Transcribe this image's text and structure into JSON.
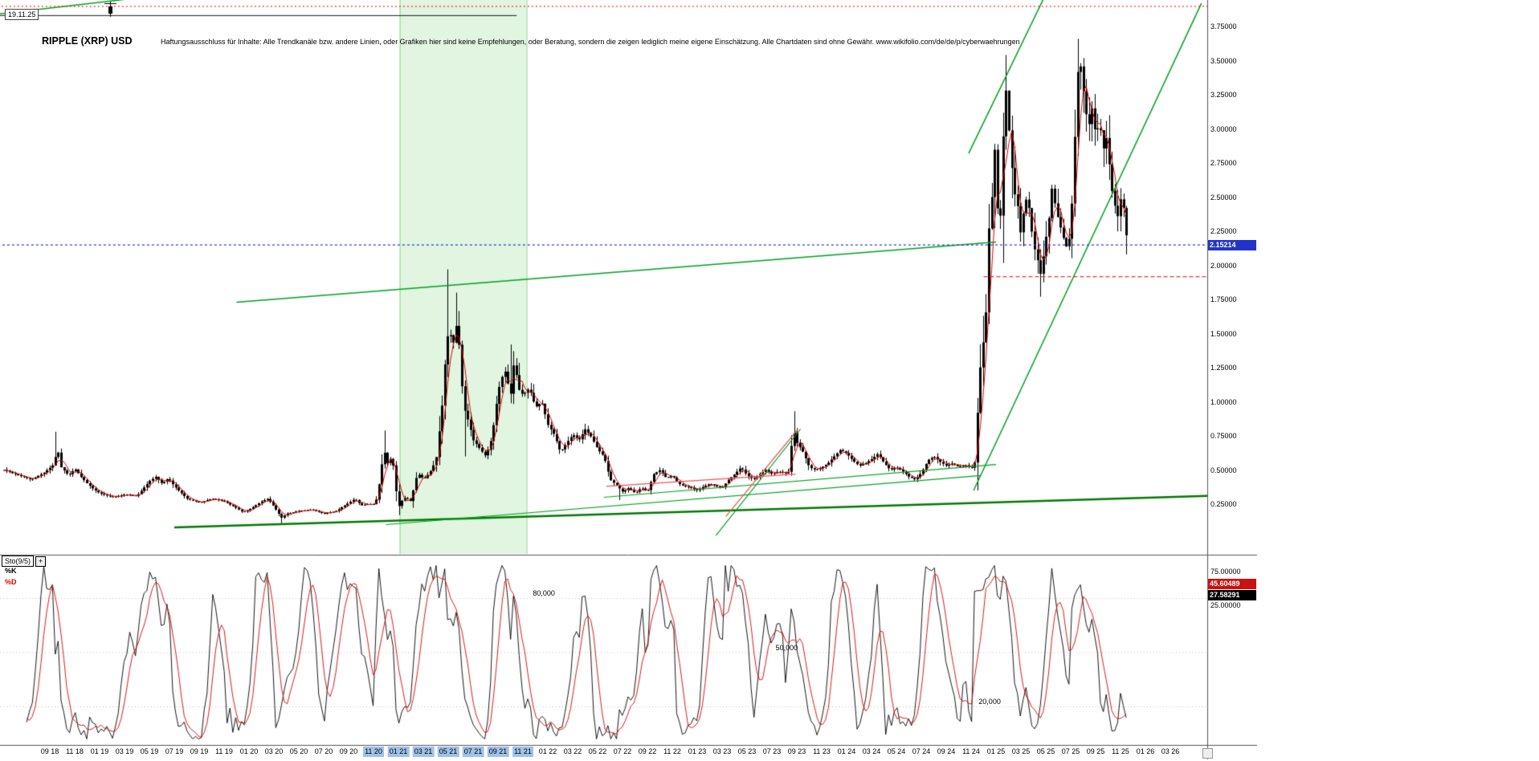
{
  "meta": {
    "title": "RIPPLE (XRP) USD",
    "disclaimer": "Haftungsausschluss für Inhalte: Alle Trendkanäle bzw. andere Linien, oder Grafiken hier sind keine Empfehlungen, oder Beratung, sondern die zeigen lediglich meine eigene Einschätzung. Alle Chartdaten sind ohne Gewähr.  www.wikifolio.com/de/de/p/cyberwaehrungen",
    "date_label": "19.11.25"
  },
  "colors": {
    "candle": "#000000",
    "ma_line": "#e00000",
    "trend_green": "#00a020",
    "support_green": "#007a00",
    "band_fill": "rgba(120,210,120,0.22)",
    "band_edge": "rgba(40,160,40,0.45)",
    "current_blue": "#2233cc",
    "alert_red": "#ee0000",
    "wedge_red": "#ee5555",
    "badge_red": "#cc1111",
    "badge_black": "#000000",
    "highlight_blue": "#9fc2ea"
  },
  "price_axis": {
    "ticks": [
      {
        "label": "3.75000",
        "value": 3.75
      },
      {
        "label": "3.50000",
        "value": 3.5
      },
      {
        "label": "3.25000",
        "value": 3.25
      },
      {
        "label": "3.00000",
        "value": 3.0
      },
      {
        "label": "2.75000",
        "value": 2.75
      },
      {
        "label": "2.50000",
        "value": 2.5
      },
      {
        "label": "2.25000",
        "value": 2.25
      },
      {
        "label": "2.00000",
        "value": 2.0
      },
      {
        "label": "1.75000",
        "value": 1.75
      },
      {
        "label": "1.50000",
        "value": 1.5
      },
      {
        "label": "1.25000",
        "value": 1.25
      },
      {
        "label": "1.00000",
        "value": 1.0
      },
      {
        "label": "0.75000",
        "value": 0.75
      },
      {
        "label": "0.50000",
        "value": 0.5
      },
      {
        "label": "0.25000",
        "value": 0.25
      }
    ],
    "current": {
      "text": "2.15214",
      "value": 2.15214
    }
  },
  "x_axis": {
    "labels": [
      "09 18",
      "11 18",
      "01 19",
      "03 19",
      "05 19",
      "07 19",
      "09 19",
      "11 19",
      "01 20",
      "03 20",
      "05 20",
      "07 20",
      "09 20",
      "11 20",
      "01 21",
      "03 21",
      "05 21",
      "07 21",
      "09 21",
      "11 21",
      "01 22",
      "03 22",
      "05 22",
      "07 22",
      "09 22",
      "11 22",
      "01 23",
      "03 23",
      "05 23",
      "07 23",
      "09 23",
      "11 23",
      "01 24",
      "03 24",
      "05 24",
      "07 24",
      "09 24",
      "11 24",
      "01 25",
      "03 25",
      "05 25",
      "07 25",
      "09 25",
      "11 25",
      "01 26",
      "03 26"
    ],
    "highlight_from": 13,
    "highlight_to": 19
  },
  "sto": {
    "name": "Sto(9/5)",
    "plus": "+",
    "k_label": "%K",
    "d_label": "%D",
    "right_labels": [
      {
        "text": "75.00000",
        "style": "plain"
      },
      {
        "text": "45.60489",
        "style": "red"
      },
      {
        "text": "27.58291",
        "style": "black"
      },
      {
        "text": "25.00000",
        "style": "plain"
      }
    ],
    "annotations": [
      {
        "text": "80,000",
        "level": 80,
        "x_m": 38.8
      },
      {
        "text": "50,000",
        "level": 50,
        "x_m": 58.3
      },
      {
        "text": "20,000",
        "level": 20,
        "x_m": 74.6
      }
    ]
  },
  "chart_data": {
    "type": "candlestick",
    "title": "RIPPLE (XRP) USD",
    "timeframe": "weekly",
    "x_unit": "months since 2018-09",
    "x_range": [
      -3.7,
      86.62
    ],
    "ylim": [
      0,
      3.95
    ],
    "grid": false,
    "current_price": 2.15214,
    "price_anchors": [
      [
        -3.7,
        0.5
      ],
      [
        -2.5,
        0.46
      ],
      [
        -1.5,
        0.43
      ],
      [
        -0.5,
        0.48
      ],
      [
        0.3,
        0.54
      ],
      [
        0.6,
        0.66
      ],
      [
        0.9,
        0.52
      ],
      [
        1.5,
        0.46
      ],
      [
        2.0,
        0.51
      ],
      [
        2.5,
        0.45
      ],
      [
        3.0,
        0.4
      ],
      [
        3.5,
        0.36
      ],
      [
        4.0,
        0.33
      ],
      [
        5.0,
        0.3
      ],
      [
        6.0,
        0.32
      ],
      [
        7.0,
        0.31
      ],
      [
        8.0,
        0.42
      ],
      [
        8.5,
        0.45
      ],
      [
        9.0,
        0.4
      ],
      [
        9.5,
        0.44
      ],
      [
        10.0,
        0.38
      ],
      [
        11.0,
        0.29
      ],
      [
        12.0,
        0.26
      ],
      [
        13.0,
        0.29
      ],
      [
        14.0,
        0.27
      ],
      [
        15.0,
        0.22
      ],
      [
        15.5,
        0.19
      ],
      [
        16.0,
        0.21
      ],
      [
        16.5,
        0.24
      ],
      [
        17.0,
        0.27
      ],
      [
        17.5,
        0.29
      ],
      [
        18.0,
        0.23
      ],
      [
        18.6,
        0.15
      ],
      [
        19.0,
        0.18
      ],
      [
        20.0,
        0.2
      ],
      [
        21.0,
        0.21
      ],
      [
        22.0,
        0.18
      ],
      [
        23.0,
        0.2
      ],
      [
        24.0,
        0.26
      ],
      [
        24.5,
        0.29
      ],
      [
        25.0,
        0.24
      ],
      [
        25.5,
        0.25
      ],
      [
        26.0,
        0.25
      ],
      [
        26.3,
        0.3
      ],
      [
        26.6,
        0.52
      ],
      [
        26.9,
        0.63
      ],
      [
        27.1,
        0.55
      ],
      [
        27.5,
        0.6
      ],
      [
        27.8,
        0.35
      ],
      [
        28.0,
        0.23
      ],
      [
        28.3,
        0.28
      ],
      [
        28.6,
        0.3
      ],
      [
        29.0,
        0.27
      ],
      [
        29.4,
        0.44
      ],
      [
        29.7,
        0.47
      ],
      [
        30.0,
        0.43
      ],
      [
        30.5,
        0.48
      ],
      [
        31.0,
        0.57
      ],
      [
        31.5,
        0.98
      ],
      [
        31.8,
        1.38
      ],
      [
        32.1,
        1.58
      ],
      [
        32.3,
        1.35
      ],
      [
        32.6,
        1.58
      ],
      [
        32.9,
        1.4
      ],
      [
        33.2,
        0.97
      ],
      [
        33.6,
        0.86
      ],
      [
        34.0,
        0.72
      ],
      [
        34.5,
        0.66
      ],
      [
        35.0,
        0.6
      ],
      [
        35.5,
        0.74
      ],
      [
        36.0,
        1.08
      ],
      [
        36.5,
        1.24
      ],
      [
        37.0,
        1.05
      ],
      [
        37.3,
        1.32
      ],
      [
        37.6,
        1.1
      ],
      [
        38.0,
        1.05
      ],
      [
        38.5,
        1.1
      ],
      [
        39.0,
        0.96
      ],
      [
        39.5,
        1.0
      ],
      [
        40.0,
        0.83
      ],
      [
        40.5,
        0.76
      ],
      [
        41.0,
        0.63
      ],
      [
        41.5,
        0.7
      ],
      [
        42.0,
        0.76
      ],
      [
        42.5,
        0.72
      ],
      [
        43.0,
        0.8
      ],
      [
        43.5,
        0.74
      ],
      [
        44.0,
        0.65
      ],
      [
        44.5,
        0.6
      ],
      [
        45.0,
        0.43
      ],
      [
        45.5,
        0.39
      ],
      [
        46.0,
        0.34
      ],
      [
        46.5,
        0.37
      ],
      [
        47.0,
        0.33
      ],
      [
        47.5,
        0.37
      ],
      [
        48.0,
        0.34
      ],
      [
        48.5,
        0.47
      ],
      [
        49.0,
        0.5
      ],
      [
        49.5,
        0.44
      ],
      [
        50.0,
        0.46
      ],
      [
        50.5,
        0.4
      ],
      [
        51.0,
        0.38
      ],
      [
        51.5,
        0.37
      ],
      [
        52.0,
        0.35
      ],
      [
        52.5,
        0.38
      ],
      [
        53.0,
        0.4
      ],
      [
        53.5,
        0.38
      ],
      [
        54.0,
        0.37
      ],
      [
        54.5,
        0.43
      ],
      [
        55.0,
        0.47
      ],
      [
        55.5,
        0.52
      ],
      [
        56.0,
        0.46
      ],
      [
        56.5,
        0.43
      ],
      [
        57.0,
        0.47
      ],
      [
        57.5,
        0.5
      ],
      [
        58.0,
        0.47
      ],
      [
        58.5,
        0.49
      ],
      [
        59.3,
        0.47
      ],
      [
        59.7,
        0.8
      ],
      [
        60.0,
        0.7
      ],
      [
        60.5,
        0.63
      ],
      [
        61.0,
        0.52
      ],
      [
        61.5,
        0.5
      ],
      [
        62.0,
        0.52
      ],
      [
        62.5,
        0.55
      ],
      [
        63.0,
        0.6
      ],
      [
        63.5,
        0.65
      ],
      [
        64.0,
        0.62
      ],
      [
        64.5,
        0.57
      ],
      [
        65.0,
        0.53
      ],
      [
        65.5,
        0.55
      ],
      [
        66.0,
        0.58
      ],
      [
        66.5,
        0.62
      ],
      [
        67.0,
        0.55
      ],
      [
        67.5,
        0.5
      ],
      [
        68.0,
        0.52
      ],
      [
        68.5,
        0.49
      ],
      [
        69.0,
        0.45
      ],
      [
        69.5,
        0.43
      ],
      [
        70.0,
        0.48
      ],
      [
        70.5,
        0.57
      ],
      [
        71.0,
        0.6
      ],
      [
        71.5,
        0.56
      ],
      [
        72.0,
        0.53
      ],
      [
        72.5,
        0.55
      ],
      [
        73.0,
        0.52
      ],
      [
        73.5,
        0.54
      ],
      [
        74.0,
        0.51
      ],
      [
        74.3,
        0.56
      ],
      [
        74.6,
        1.1
      ],
      [
        74.9,
        1.45
      ],
      [
        75.1,
        1.4
      ],
      [
        75.4,
        2.25
      ],
      [
        75.7,
        2.55
      ],
      [
        75.9,
        2.88
      ],
      [
        76.1,
        2.42
      ],
      [
        76.4,
        2.35
      ],
      [
        76.6,
        3.05
      ],
      [
        76.8,
        3.28
      ],
      [
        77.1,
        2.9
      ],
      [
        77.4,
        2.55
      ],
      [
        77.7,
        2.45
      ],
      [
        78.0,
        2.2
      ],
      [
        78.3,
        2.5
      ],
      [
        78.6,
        2.45
      ],
      [
        79.0,
        2.15
      ],
      [
        79.3,
        2.05
      ],
      [
        79.6,
        1.92
      ],
      [
        79.9,
        2.15
      ],
      [
        80.2,
        2.3
      ],
      [
        80.5,
        2.58
      ],
      [
        80.8,
        2.4
      ],
      [
        81.1,
        2.3
      ],
      [
        81.4,
        2.2
      ],
      [
        81.7,
        2.12
      ],
      [
        82.0,
        2.26
      ],
      [
        82.3,
        2.9
      ],
      [
        82.6,
        3.52
      ],
      [
        82.8,
        3.45
      ],
      [
        83.1,
        3.2
      ],
      [
        83.4,
        3.0
      ],
      [
        83.7,
        3.15
      ],
      [
        84.0,
        2.95
      ],
      [
        84.3,
        3.05
      ],
      [
        84.6,
        2.85
      ],
      [
        84.9,
        2.95
      ],
      [
        85.2,
        2.6
      ],
      [
        85.5,
        2.45
      ],
      [
        85.8,
        2.35
      ],
      [
        86.1,
        2.55
      ],
      [
        86.4,
        2.25
      ],
      [
        86.6,
        2.15
      ]
    ],
    "key_highs": [
      [
        0.55,
        0.78
      ],
      [
        26.8,
        0.79
      ],
      [
        31.9,
        1.97
      ],
      [
        32.7,
        1.8
      ],
      [
        36.9,
        1.42
      ],
      [
        59.8,
        0.93
      ],
      [
        74.95,
        1.63
      ],
      [
        76.85,
        3.4
      ],
      [
        82.65,
        3.66
      ],
      [
        85.0,
        3.1
      ]
    ],
    "key_lows": [
      [
        18.6,
        0.11
      ],
      [
        28.0,
        0.17
      ],
      [
        33.4,
        0.6
      ],
      [
        45.8,
        0.28
      ],
      [
        79.6,
        1.77
      ],
      [
        86.55,
        2.08
      ]
    ],
    "overlays": {
      "band": {
        "name": "2021-bull-phase-band",
        "m1": 28.1,
        "m2": 38.3
      },
      "trendlines": [
        {
          "name": "resistance-2021-2024",
          "pts": [
            [
              15.0,
              1.73
            ],
            [
              76.0,
              2.17
            ]
          ],
          "color": "#00a020",
          "w": 1.5
        },
        {
          "name": "long-term-support",
          "pts": [
            [
              10.0,
              0.08
            ],
            [
              93.0,
              0.31
            ]
          ],
          "color": "#007a00",
          "w": 2.5
        },
        {
          "name": "support-2021-2024",
          "pts": [
            [
              27.0,
              0.1
            ],
            [
              74.8,
              0.46
            ]
          ],
          "color": "#00a020",
          "w": 1.2
        },
        {
          "name": "support-2022-2024",
          "pts": [
            [
              44.5,
              0.3
            ],
            [
              76.0,
              0.54
            ]
          ],
          "color": "#00a020",
          "w": 1.2
        },
        {
          "name": "steep-line-2023",
          "pts": [
            [
              53.5,
              0.02
            ],
            [
              60.3,
              0.8
            ]
          ],
          "color": "#00a020",
          "w": 1.2
        },
        {
          "name": "steep-channel-upper",
          "pts": [
            [
              73.8,
              2.82
            ],
            [
              79.8,
              3.95
            ]
          ],
          "color": "#00a020",
          "w": 1.5
        },
        {
          "name": "steep-channel-lower",
          "pts": [
            [
              74.2,
              0.35
            ],
            [
              92.5,
              3.92
            ]
          ],
          "color": "#00a020",
          "w": 1.5
        },
        {
          "name": "topleft-green-line",
          "pts": [
            [
              -4.2,
              3.84
            ],
            [
              9.0,
              3.98
            ]
          ],
          "color": "#00a020",
          "w": 1.5
        },
        {
          "name": "topleft-black-line",
          "pts": [
            [
              -4.2,
              3.83
            ],
            [
              37.5,
              3.83
            ]
          ],
          "color": "#1a1a1a",
          "w": 1
        },
        {
          "name": "wedge-top-red",
          "pts": [
            [
              44.7,
              0.38
            ],
            [
              59.9,
              0.47
            ]
          ],
          "color": "#ee5555",
          "w": 1.2
        },
        {
          "name": "wedge-rising-red",
          "pts": [
            [
              54.3,
              0.16
            ],
            [
              60.1,
              0.8
            ]
          ],
          "color": "#ee5555",
          "w": 1.2
        }
      ],
      "hlines": [
        {
          "name": "top-resistance-dotted",
          "price": 3.9,
          "m1": -4.2,
          "m2": 93.2,
          "color": "#ee0000",
          "dash": [
            2,
            3
          ],
          "w": 1.2
        },
        {
          "name": "right-resistance-dashed",
          "price": 1.92,
          "m1": 75.0,
          "m2": 93.2,
          "color": "#ee3333",
          "dash": [
            5,
            3
          ],
          "w": 1.2
        },
        {
          "name": "current-price-line",
          "price": 2.15214,
          "m1": -4.2,
          "m2": 93.2,
          "color": "#2233cc",
          "dash": [
            3,
            3
          ],
          "w": 1.2
        }
      ]
    },
    "indicator": {
      "type": "stochastic",
      "label": "Sto(9/5)",
      "k_period": 9,
      "d_period": 5,
      "k_last": 27.58291,
      "d_last": 45.60489,
      "levels": [
        80,
        50,
        20
      ],
      "scale_labels": [
        75.0,
        25.0
      ]
    }
  }
}
